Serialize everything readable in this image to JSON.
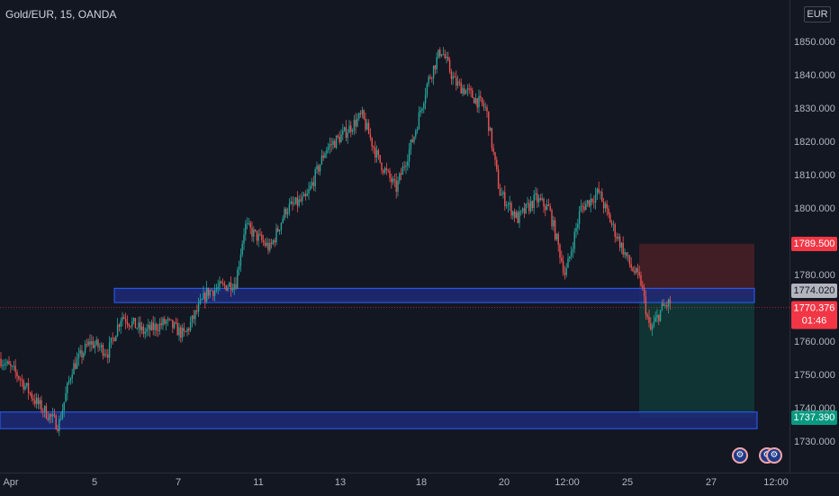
{
  "header": {
    "symbol_legend": "Gold/EUR, 15, OANDA",
    "currency": "EUR"
  },
  "price_axis": {
    "ticks": [
      "1850.000",
      "1840.000",
      "1830.000",
      "1820.000",
      "1810.000",
      "1800.000",
      "1780.000",
      "1760.000",
      "1750.000",
      "1740.000",
      "1730.000"
    ]
  },
  "time_axis": {
    "labels": [
      "Apr",
      "5",
      "7",
      "11",
      "13",
      "18",
      "20",
      "12:00",
      "25",
      "27",
      "12:00"
    ]
  },
  "price_tags": {
    "stop": "1789.500",
    "entry": "1774.020",
    "last": "1770.376",
    "countdown": "01:46",
    "target": "1737.390"
  },
  "colors": {
    "background": "#131722",
    "up": "#26a69a",
    "down": "#ef5350",
    "zone_fill": "#1e2a78",
    "zone_border": "#2962ff",
    "stop_zone": "#4a1e27",
    "target_zone": "#0f3a36"
  },
  "icons": [
    "earnings-icon",
    "earnings-icon",
    "dividend-icon"
  ],
  "chart_data": {
    "type": "candlestick",
    "title": "",
    "ylim": [
      1722,
      1862
    ],
    "levels": {
      "stop": 1789.5,
      "entry": 1774.02,
      "last": 1770.376,
      "target": 1737.39
    },
    "zones": [
      {
        "name": "",
        "low": 1772,
        "high": 1776
      },
      {
        "name": "",
        "low": 1734,
        "high": 1739
      }
    ],
    "path": [
      [
        0,
        1755
      ],
      [
        20,
        1750
      ],
      [
        40,
        1742
      ],
      [
        65,
        1735
      ],
      [
        80,
        1752
      ],
      [
        100,
        1760
      ],
      [
        120,
        1757
      ],
      [
        135,
        1768
      ],
      [
        160,
        1763
      ],
      [
        185,
        1766
      ],
      [
        205,
        1762
      ],
      [
        230,
        1775
      ],
      [
        262,
        1778
      ],
      [
        272,
        1795
      ],
      [
        300,
        1788
      ],
      [
        318,
        1800
      ],
      [
        340,
        1803
      ],
      [
        362,
        1818
      ],
      [
        380,
        1822
      ],
      [
        402,
        1828
      ],
      [
        420,
        1815
      ],
      [
        440,
        1806
      ],
      [
        460,
        1822
      ],
      [
        475,
        1838
      ],
      [
        490,
        1848
      ],
      [
        505,
        1838
      ],
      [
        520,
        1835
      ],
      [
        540,
        1830
      ],
      [
        555,
        1805
      ],
      [
        575,
        1797
      ],
      [
        595,
        1803
      ],
      [
        610,
        1800
      ],
      [
        628,
        1780
      ],
      [
        645,
        1800
      ],
      [
        665,
        1805
      ],
      [
        680,
        1795
      ],
      [
        700,
        1783
      ],
      [
        712,
        1778
      ],
      [
        722,
        1763
      ],
      [
        735,
        1770
      ],
      [
        745,
        1772
      ]
    ]
  }
}
